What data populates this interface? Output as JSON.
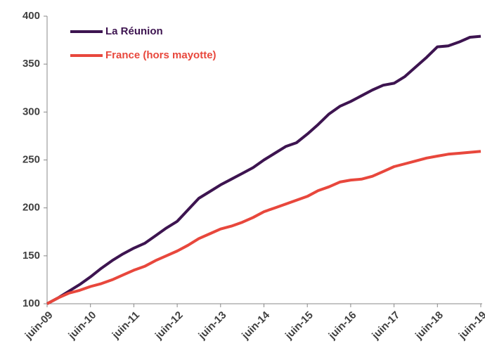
{
  "chart_data": {
    "type": "line",
    "categories": [
      "juin-09",
      null,
      null,
      null,
      "juin-10",
      null,
      null,
      null,
      "juin-11",
      null,
      null,
      null,
      "juin-12",
      null,
      null,
      null,
      "juin-13",
      null,
      null,
      null,
      "juin-14",
      null,
      null,
      null,
      "juin-15",
      null,
      null,
      null,
      "juin-16",
      null,
      null,
      null,
      "juin-17",
      null,
      null,
      null,
      "juin-18",
      null,
      null,
      null,
      "juin-19"
    ],
    "series": [
      {
        "name": "La Réunion",
        "color": "#3d1450",
        "values": [
          100,
          106,
          113,
          120,
          128,
          137,
          145,
          152,
          158,
          163,
          171,
          179,
          186,
          198,
          210,
          217,
          224,
          230,
          236,
          242,
          250,
          257,
          264,
          268,
          277,
          287,
          298,
          306,
          311,
          317,
          323,
          328,
          330,
          337,
          347,
          357,
          368,
          369,
          373,
          378,
          379
        ]
      },
      {
        "name": "France (hors mayotte)",
        "color": "#e8473c",
        "values": [
          100,
          106,
          111,
          114,
          118,
          121,
          125,
          130,
          135,
          139,
          145,
          150,
          155,
          161,
          168,
          173,
          178,
          181,
          185,
          190,
          196,
          200,
          204,
          208,
          212,
          218,
          222,
          227,
          229,
          230,
          233,
          238,
          243,
          246,
          249,
          252,
          254,
          256,
          257,
          258,
          259
        ]
      }
    ],
    "ylim": [
      100,
      400
    ],
    "yticks": [
      100,
      150,
      200,
      250,
      300,
      350,
      400
    ],
    "grid": false,
    "legend": "top-left"
  }
}
